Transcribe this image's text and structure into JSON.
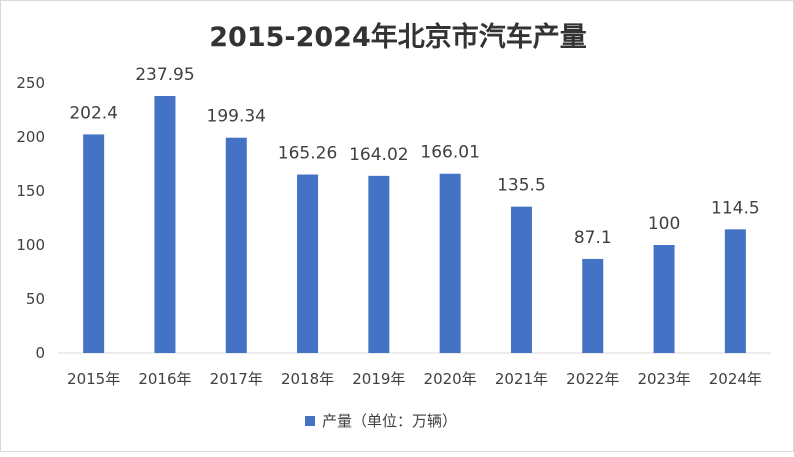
{
  "chart_data": {
    "type": "bar",
    "title": "2015-2024年北京市汽车产量",
    "categories": [
      "2015年",
      "2016年",
      "2017年",
      "2018年",
      "2019年",
      "2020年",
      "2021年",
      "2022年",
      "2023年",
      "2024年"
    ],
    "series": [
      {
        "name": "产量（单位：万辆）",
        "values": [
          202.4,
          237.95,
          199.34,
          165.26,
          164.02,
          166.01,
          135.5,
          87.1,
          100,
          114.5
        ],
        "labels": [
          "202.4",
          "237.95",
          "199.34",
          "165.26",
          "164.02",
          "166.01",
          "135.5",
          "87.1",
          "100",
          "114.5"
        ]
      }
    ],
    "ylim": [
      0,
      250
    ],
    "yticks": [
      0,
      50,
      100,
      150,
      200,
      250
    ],
    "grid": false,
    "legend_position": "bottom",
    "colors": {
      "bar": "#4472C4",
      "axis": "#d9d9d9",
      "text": "#404040",
      "title": "#333333"
    }
  }
}
